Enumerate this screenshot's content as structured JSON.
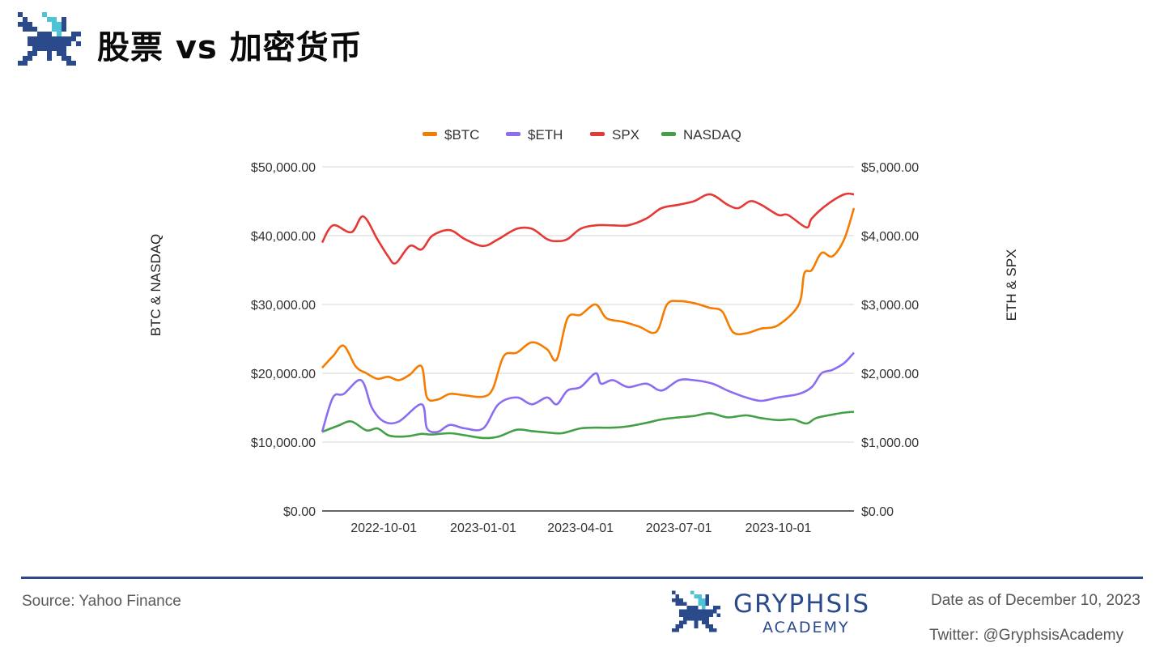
{
  "header": {
    "title": "股票 vs 加密货币"
  },
  "footer": {
    "source": "Source: Yahoo Finance",
    "brand_name": "GRYPHSIS",
    "brand_sub": "ACADEMY",
    "date_note": "Date as of December 10, 2023",
    "twitter": "Twitter: @GryphsisAcademy"
  },
  "colors": {
    "brand": "#2b4a8c",
    "btc": "#f57c00",
    "eth": "#8c6cf0",
    "spx": "#e53935",
    "nasdaq": "#43a047"
  },
  "icons": {
    "logo": "gryphon-pixel-logo"
  },
  "chart_data": {
    "type": "line",
    "title": "",
    "ylabel": "BTC & NASDAQ",
    "y2label": "ETH & SPX",
    "ylim": [
      0,
      50000
    ],
    "y2lim": [
      0,
      5000
    ],
    "yticks": [
      "$0.00",
      "$10,000.00",
      "$20,000.00",
      "$30,000.00",
      "$40,000.00",
      "$50,000.00"
    ],
    "y2ticks": [
      "$0.00",
      "$1,000.00",
      "$2,000.00",
      "$3,000.00",
      "$4,000.00",
      "$5,000.00"
    ],
    "xlim": [
      "2022-08-05",
      "2023-12-10"
    ],
    "xticks": [
      "2022-10-01",
      "2023-01-01",
      "2023-04-01",
      "2023-07-01",
      "2023-10-01"
    ],
    "legend_position": "top",
    "grid": true,
    "series": [
      {
        "name": "$BTC",
        "axis": "left",
        "color": "#f57c00",
        "x": [
          "2022-08-05",
          "2022-08-15",
          "2022-08-25",
          "2022-09-05",
          "2022-09-15",
          "2022-09-25",
          "2022-10-05",
          "2022-10-15",
          "2022-10-25",
          "2022-11-05",
          "2022-11-10",
          "2022-11-20",
          "2022-12-01",
          "2022-12-15",
          "2023-01-01",
          "2023-01-10",
          "2023-01-20",
          "2023-02-01",
          "2023-02-15",
          "2023-03-01",
          "2023-03-10",
          "2023-03-20",
          "2023-04-01",
          "2023-04-15",
          "2023-04-25",
          "2023-05-10",
          "2023-05-25",
          "2023-06-10",
          "2023-06-20",
          "2023-07-01",
          "2023-07-15",
          "2023-07-30",
          "2023-08-10",
          "2023-08-20",
          "2023-09-01",
          "2023-09-15",
          "2023-10-01",
          "2023-10-20",
          "2023-10-25",
          "2023-11-01",
          "2023-11-10",
          "2023-11-20",
          "2023-12-01",
          "2023-12-10"
        ],
        "y": [
          20800,
          22500,
          24000,
          21000,
          20000,
          19200,
          19500,
          19000,
          19800,
          21000,
          16500,
          16200,
          17000,
          16800,
          16600,
          17800,
          22500,
          23000,
          24500,
          23500,
          22000,
          28000,
          28500,
          30000,
          28000,
          27500,
          26800,
          26000,
          30000,
          30500,
          30200,
          29500,
          29000,
          26000,
          25800,
          26500,
          27000,
          30000,
          34500,
          35000,
          37500,
          37000,
          39500,
          44000
        ]
      },
      {
        "name": "$ETH",
        "axis": "right",
        "color": "#8c6cf0",
        "x": [
          "2022-08-05",
          "2022-08-15",
          "2022-08-25",
          "2022-09-10",
          "2022-09-20",
          "2022-10-01",
          "2022-10-15",
          "2022-11-05",
          "2022-11-10",
          "2022-11-20",
          "2022-12-01",
          "2022-12-15",
          "2023-01-01",
          "2023-01-15",
          "2023-02-01",
          "2023-02-15",
          "2023-03-01",
          "2023-03-10",
          "2023-03-20",
          "2023-04-01",
          "2023-04-15",
          "2023-04-20",
          "2023-05-01",
          "2023-05-15",
          "2023-06-01",
          "2023-06-15",
          "2023-07-01",
          "2023-07-15",
          "2023-08-01",
          "2023-08-15",
          "2023-09-01",
          "2023-09-15",
          "2023-10-01",
          "2023-10-20",
          "2023-11-01",
          "2023-11-10",
          "2023-11-20",
          "2023-12-01",
          "2023-12-10"
        ],
        "y": [
          1150,
          1650,
          1700,
          1900,
          1500,
          1300,
          1300,
          1550,
          1200,
          1150,
          1250,
          1200,
          1200,
          1550,
          1650,
          1550,
          1650,
          1550,
          1750,
          1800,
          2000,
          1850,
          1900,
          1800,
          1850,
          1750,
          1900,
          1900,
          1850,
          1750,
          1650,
          1600,
          1650,
          1700,
          1800,
          2000,
          2050,
          2150,
          2300
        ]
      },
      {
        "name": "SPX",
        "axis": "right",
        "color": "#e53935",
        "x": [
          "2022-08-05",
          "2022-08-15",
          "2022-09-01",
          "2022-09-12",
          "2022-09-25",
          "2022-10-05",
          "2022-10-12",
          "2022-10-25",
          "2022-11-05",
          "2022-11-15",
          "2022-12-01",
          "2022-12-15",
          "2023-01-01",
          "2023-01-15",
          "2023-02-01",
          "2023-02-15",
          "2023-03-01",
          "2023-03-10",
          "2023-03-20",
          "2023-04-01",
          "2023-04-15",
          "2023-05-01",
          "2023-05-15",
          "2023-06-01",
          "2023-06-15",
          "2023-07-01",
          "2023-07-15",
          "2023-07-30",
          "2023-08-15",
          "2023-08-25",
          "2023-09-05",
          "2023-09-15",
          "2023-10-01",
          "2023-10-10",
          "2023-10-27",
          "2023-11-01",
          "2023-11-15",
          "2023-12-01",
          "2023-12-10"
        ],
        "y": [
          3900,
          4150,
          4050,
          4280,
          3950,
          3700,
          3600,
          3850,
          3800,
          4000,
          4080,
          3950,
          3850,
          3950,
          4100,
          4100,
          3950,
          3920,
          3950,
          4100,
          4150,
          4150,
          4150,
          4250,
          4400,
          4450,
          4500,
          4600,
          4450,
          4400,
          4500,
          4450,
          4300,
          4300,
          4120,
          4250,
          4450,
          4600,
          4600
        ]
      },
      {
        "name": "NASDAQ",
        "axis": "left",
        "color": "#43a047",
        "x": [
          "2022-08-05",
          "2022-08-20",
          "2022-09-01",
          "2022-09-15",
          "2022-09-25",
          "2022-10-05",
          "2022-10-15",
          "2022-10-25",
          "2022-11-05",
          "2022-11-15",
          "2022-12-01",
          "2022-12-15",
          "2023-01-01",
          "2023-01-15",
          "2023-02-01",
          "2023-02-15",
          "2023-03-01",
          "2023-03-15",
          "2023-04-01",
          "2023-04-15",
          "2023-05-01",
          "2023-05-15",
          "2023-06-01",
          "2023-06-15",
          "2023-07-01",
          "2023-07-15",
          "2023-07-30",
          "2023-08-15",
          "2023-09-01",
          "2023-09-15",
          "2023-10-01",
          "2023-10-15",
          "2023-10-27",
          "2023-11-05",
          "2023-11-20",
          "2023-12-01",
          "2023-12-10"
        ],
        "y": [
          11500,
          12400,
          13000,
          11700,
          12000,
          11000,
          10800,
          10900,
          11200,
          11100,
          11300,
          11000,
          10600,
          10800,
          11800,
          11600,
          11400,
          11300,
          12000,
          12100,
          12100,
          12300,
          12800,
          13300,
          13600,
          13800,
          14200,
          13600,
          13900,
          13500,
          13200,
          13300,
          12700,
          13500,
          14000,
          14300,
          14400
        ]
      }
    ]
  }
}
